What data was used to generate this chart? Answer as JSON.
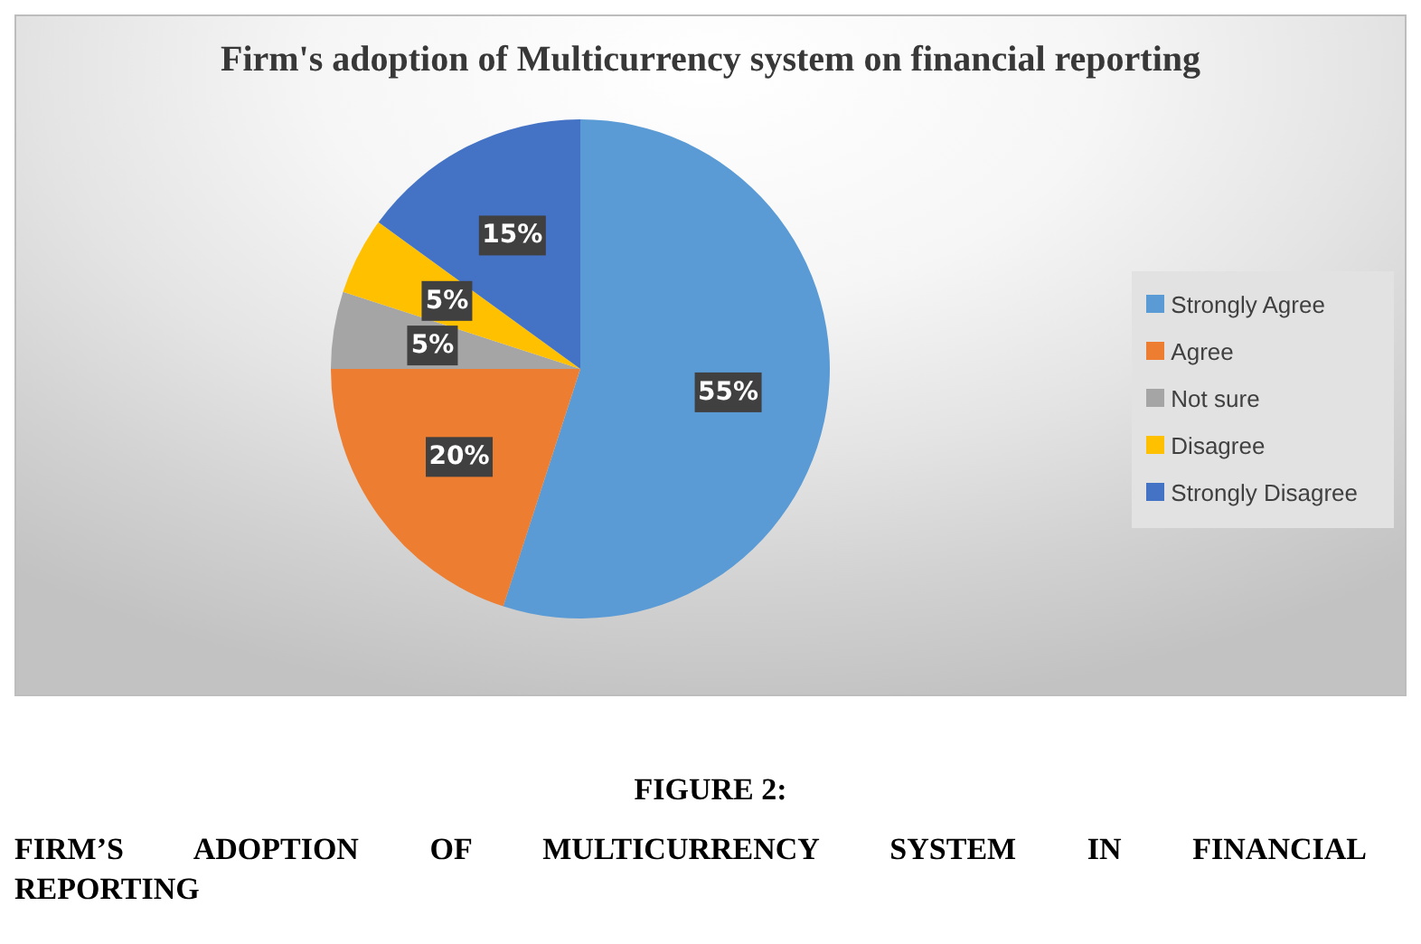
{
  "chart_data": {
    "type": "pie",
    "title": "Firm's adoption of Multicurrency system on financial reporting",
    "categories": [
      "Strongly Agree",
      "Agree",
      "Not sure",
      "Disagree",
      "Strongly Disagree"
    ],
    "values": [
      55,
      20,
      5,
      5,
      15
    ],
    "colors": [
      "#5b9bd5",
      "#ed7d31",
      "#a5a5a5",
      "#ffc000",
      "#4472c4"
    ],
    "value_labels": [
      "55%",
      "20%",
      "5%",
      "5%",
      "15%"
    ],
    "legend": "right",
    "annotations": [
      "FIGURE 2:",
      "FIRM’S ADOPTION OF MULTICURRENCY SYSTEM IN FINANCIAL REPORTING"
    ]
  }
}
